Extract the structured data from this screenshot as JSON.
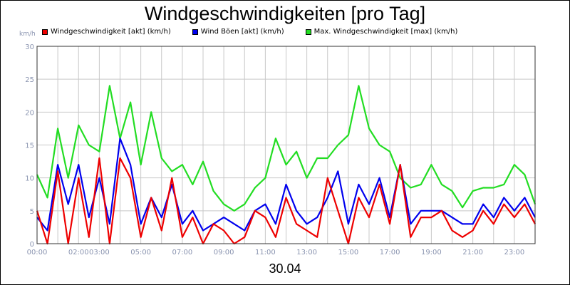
{
  "chart_data": {
    "type": "line",
    "title": "Windgeschwindigkeiten [pro Tag]",
    "ylabel": "km/h",
    "xlabel": "30.04",
    "ylim": [
      0,
      30
    ],
    "xlim": [
      0,
      24
    ],
    "yticks": [
      0,
      5,
      10,
      15,
      20,
      25,
      30
    ],
    "xticks": [
      "00:00",
      "02:00",
      "03:00",
      "05:00",
      "07:00",
      "09:00",
      "11:00",
      "13:00",
      "15:00",
      "17:00",
      "19:00",
      "21:00",
      "23:00"
    ],
    "grid": true,
    "series": [
      {
        "name": "Max. Windgeschwindigkeit [max] (km/h)",
        "color": "#22dd22",
        "x": [
          0,
          0.5,
          1,
          1.5,
          2,
          2.5,
          3,
          3.5,
          4,
          4.5,
          5,
          5.5,
          6,
          6.5,
          7,
          7.5,
          8,
          8.5,
          9,
          9.5,
          10,
          10.5,
          11,
          11.5,
          12,
          12.5,
          13,
          13.5,
          14,
          14.5,
          15,
          15.5,
          16,
          16.5,
          17,
          17.5,
          18,
          18.5,
          19,
          19.5,
          20,
          20.5,
          21,
          21.5,
          22,
          22.5,
          23,
          23.5,
          24
        ],
        "values": [
          10.5,
          7,
          17.5,
          10,
          18,
          15,
          14,
          24,
          16,
          21.5,
          12,
          20,
          13,
          11,
          12,
          9,
          12.5,
          8,
          6,
          5,
          6,
          8.5,
          10,
          16,
          12,
          14,
          10,
          13,
          13,
          15,
          16.5,
          24,
          17.5,
          15,
          14,
          10,
          8.5,
          9,
          12,
          9,
          8,
          5.5,
          8,
          8.5,
          8.5,
          9,
          12,
          10.5,
          6
        ]
      },
      {
        "name": "Wind Böen [akt] (km/h)",
        "color": "#0000ee",
        "x": [
          0,
          0.5,
          1,
          1.5,
          2,
          2.5,
          3,
          3.5,
          4,
          4.5,
          5,
          5.5,
          6,
          6.5,
          7,
          7.5,
          8,
          8.5,
          9,
          9.5,
          10,
          10.5,
          11,
          11.5,
          12,
          12.5,
          13,
          13.5,
          14,
          14.5,
          15,
          15.5,
          16,
          16.5,
          17,
          17.5,
          18,
          18.5,
          19,
          19.5,
          20,
          20.5,
          21,
          21.5,
          22,
          22.5,
          23,
          23.5,
          24
        ],
        "values": [
          4,
          2,
          12,
          6,
          12,
          4,
          10,
          3,
          16,
          12,
          3,
          7,
          4,
          9,
          3,
          5,
          2,
          3,
          4,
          3,
          2,
          5,
          6,
          3,
          9,
          5,
          3,
          4,
          7,
          11,
          3,
          9,
          6,
          10,
          4,
          12,
          3,
          5,
          5,
          5,
          4,
          3,
          3,
          6,
          4,
          7,
          5,
          7,
          4
        ]
      },
      {
        "name": "Windgeschwindigkeit [akt] (km/h)",
        "color": "#ee0000",
        "x": [
          0,
          0.5,
          1,
          1.5,
          2,
          2.5,
          3,
          3.5,
          4,
          4.5,
          5,
          5.5,
          6,
          6.5,
          7,
          7.5,
          8,
          8.5,
          9,
          9.5,
          10,
          10.5,
          11,
          11.5,
          12,
          12.5,
          13,
          13.5,
          14,
          14.5,
          15,
          15.5,
          16,
          16.5,
          17,
          17.5,
          18,
          18.5,
          19,
          19.5,
          20,
          20.5,
          21,
          21.5,
          22,
          22.5,
          23,
          23.5,
          24
        ],
        "values": [
          5,
          0,
          11,
          0,
          10,
          1,
          13,
          0,
          13,
          10,
          1,
          7,
          2,
          10,
          1,
          4,
          0,
          3,
          2,
          0,
          1,
          5,
          4,
          1,
          7,
          3,
          2,
          1,
          10,
          5,
          0,
          7,
          4,
          9,
          3,
          12,
          1,
          4,
          4,
          5,
          2,
          1,
          2,
          5,
          3,
          6,
          4,
          6,
          3
        ]
      }
    ]
  }
}
